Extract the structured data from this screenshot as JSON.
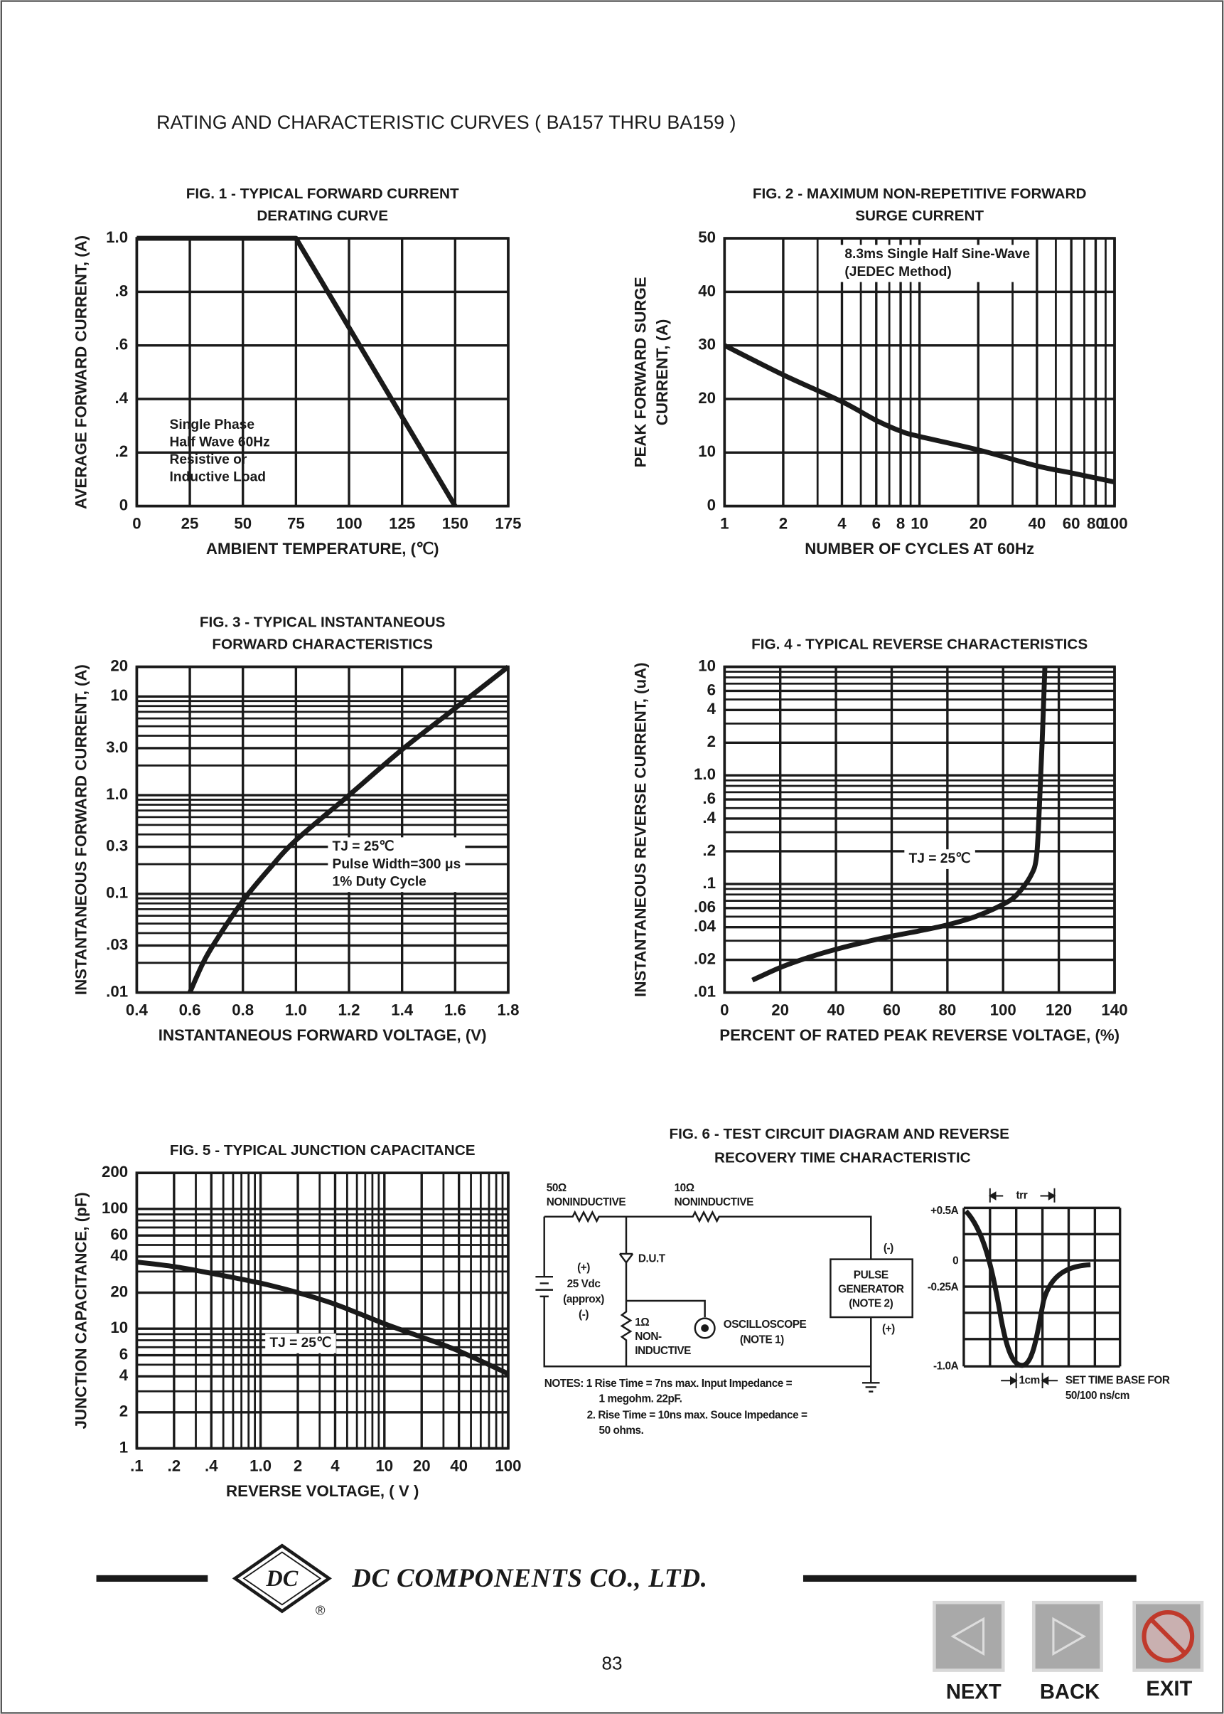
{
  "header": {
    "title": "RATING AND CHARACTERISTIC CURVES ( BA157 THRU BA159 )"
  },
  "chart_data": [
    {
      "type": "line",
      "title": [
        "FIG. 1 - TYPICAL FORWARD CURRENT",
        "DERATING CURVE"
      ],
      "xlabel": "AMBIENT TEMPERATURE, (℃)",
      "ylabel": [
        "AVERAGE FORWARD CURRENT, (A)"
      ],
      "xscale": "linear",
      "yscale": "linear",
      "grid": true,
      "color": "#1a1a1a",
      "xlim": [
        0,
        175
      ],
      "ylim": [
        0,
        1.0
      ],
      "xticks": [
        0,
        25,
        50,
        75,
        100,
        125,
        150,
        175
      ],
      "yticks": [
        0,
        {
          "value": 0.2,
          "label": ".2"
        },
        {
          "value": 0.4,
          "label": ".4"
        },
        {
          "value": 0.6,
          "label": ".6"
        },
        {
          "value": 0.8,
          "label": ".8"
        },
        {
          "value": 1.0,
          "label": "1.0"
        }
      ],
      "x": [
        0,
        75,
        150
      ],
      "values": [
        1.0,
        1.0,
        0
      ],
      "annotation": [
        "Single Phase",
        "Half Wave 60Hz",
        "Resistive or",
        "Inductive Load"
      ]
    },
    {
      "type": "line",
      "title": [
        "FIG. 2 - MAXIMUM NON-REPETITIVE FORWARD",
        "SURGE CURRENT"
      ],
      "xlabel": "NUMBER OF CYCLES AT 60Hz",
      "ylabel": [
        "PEAK FORWARD SURGE",
        "CURRENT, (A)"
      ],
      "xscale": "log",
      "yscale": "linear",
      "grid": true,
      "color": "#1a1a1a",
      "xlim": [
        1,
        100
      ],
      "ylim": [
        0,
        50
      ],
      "xticks": [
        1,
        2,
        4,
        6,
        8,
        10,
        20,
        40,
        60,
        80,
        100
      ],
      "minor_xticks": [
        3,
        5,
        7,
        9,
        30,
        50,
        70,
        90
      ],
      "yticks": [
        0,
        10,
        20,
        30,
        40,
        50
      ],
      "x": [
        1,
        2,
        4,
        6,
        8,
        10,
        20,
        40,
        60,
        100
      ],
      "values": [
        30,
        24.5,
        19.5,
        16,
        14,
        13,
        10.5,
        7.5,
        6.2,
        4.5
      ],
      "annotation": [
        "8.3ms Single Half Sine-Wave",
        "(JEDEC Method)"
      ]
    },
    {
      "type": "line",
      "title": [
        "FIG. 3 - TYPICAL INSTANTANEOUS",
        "FORWARD CHARACTERISTICS"
      ],
      "xlabel": "INSTANTANEOUS FORWARD VOLTAGE, (V)",
      "ylabel": [
        "INSTANTANEOUS FORWARD CURRENT, (A)"
      ],
      "xscale": "linear",
      "yscale": "log",
      "grid": true,
      "color": "#1a1a1a",
      "xlim": [
        0.4,
        1.8
      ],
      "ylim": [
        0.01,
        20
      ],
      "xticks": [
        0.4,
        0.6,
        0.8,
        {
          "value": 1.0,
          "label": "1.0"
        },
        1.2,
        1.4,
        1.6,
        1.8
      ],
      "yticks": [
        {
          "value": 0.01,
          "label": ".01"
        },
        {
          "value": 0.03,
          "label": ".03"
        },
        0.1,
        0.3,
        {
          "value": 1.0,
          "label": "1.0"
        },
        {
          "value": 3.0,
          "label": "3.0"
        },
        10,
        20
      ],
      "minor_yticks": [
        0.02,
        0.04,
        0.05,
        0.06,
        0.07,
        0.08,
        0.09,
        0.2,
        0.4,
        0.5,
        0.6,
        0.7,
        0.8,
        0.9,
        2,
        4,
        5,
        6,
        7,
        8,
        9
      ],
      "x": [
        0.6,
        0.65,
        0.7,
        0.8,
        0.9,
        1.0,
        1.2,
        1.4,
        1.6,
        1.8
      ],
      "values": [
        0.01,
        0.02,
        0.034,
        0.085,
        0.18,
        0.35,
        1.0,
        2.9,
        7.6,
        20
      ],
      "annotation": [
        "TJ = 25℃",
        "Pulse Width=300 μs",
        "1% Duty Cycle"
      ]
    },
    {
      "type": "line",
      "title": [
        "FIG. 4 - TYPICAL REVERSE CHARACTERISTICS"
      ],
      "xlabel": "PERCENT OF RATED PEAK REVERSE VOLTAGE, (%)",
      "ylabel": [
        "INSTANTANEOUS REVERSE CURRENT, (uA)"
      ],
      "xscale": "linear",
      "yscale": "log",
      "grid": true,
      "color": "#1a1a1a",
      "xlim": [
        0,
        140
      ],
      "ylim": [
        0.01,
        10
      ],
      "xticks": [
        0,
        20,
        40,
        60,
        80,
        100,
        120,
        140
      ],
      "yticks": [
        {
          "value": 0.01,
          "label": ".01"
        },
        {
          "value": 0.02,
          "label": ".02"
        },
        {
          "value": 0.04,
          "label": ".04"
        },
        {
          "value": 0.06,
          "label": ".06"
        },
        {
          "value": 0.1,
          "label": ".1"
        },
        {
          "value": 0.2,
          "label": ".2"
        },
        {
          "value": 0.4,
          "label": ".4"
        },
        {
          "value": 0.6,
          "label": ".6"
        },
        {
          "value": 1.0,
          "label": "1.0"
        },
        2,
        4,
        6,
        10
      ],
      "minor_yticks": [
        0.03,
        0.05,
        0.07,
        0.08,
        0.09,
        0.3,
        0.5,
        0.7,
        0.8,
        0.9,
        3,
        5,
        7,
        8,
        9
      ],
      "x": [
        10,
        20,
        30,
        40,
        50,
        60,
        70,
        80,
        90,
        100,
        105,
        110,
        112,
        113,
        114,
        115
      ],
      "values": [
        0.013,
        0.017,
        0.021,
        0.025,
        0.029,
        0.033,
        0.037,
        0.042,
        0.05,
        0.065,
        0.08,
        0.12,
        0.18,
        0.5,
        2,
        10
      ],
      "annotation": [
        "TJ = 25℃"
      ]
    },
    {
      "type": "line",
      "title": [
        "FIG. 5 - TYPICAL JUNCTION CAPACITANCE"
      ],
      "xlabel": "REVERSE VOLTAGE, ( V )",
      "ylabel": [
        "JUNCTION CAPACITANCE, (pF)"
      ],
      "xscale": "log",
      "yscale": "log",
      "grid": true,
      "color": "#1a1a1a",
      "xlim": [
        0.1,
        100
      ],
      "ylim": [
        1,
        200
      ],
      "xticks": [
        {
          "value": 0.1,
          "label": ".1"
        },
        {
          "value": 0.2,
          "label": ".2"
        },
        {
          "value": 0.4,
          "label": ".4"
        },
        {
          "value": 1.0,
          "label": "1.0"
        },
        2,
        4,
        10,
        20,
        40,
        100
      ],
      "minor_xticks": [
        0.3,
        0.5,
        0.6,
        0.7,
        0.8,
        0.9,
        3,
        5,
        6,
        7,
        8,
        9,
        30,
        50,
        60,
        70,
        80,
        90
      ],
      "yticks": [
        1,
        2,
        4,
        6,
        10,
        20,
        40,
        60,
        100,
        200
      ],
      "minor_yticks": [
        3,
        5,
        7,
        8,
        9,
        30,
        50,
        70,
        80,
        90
      ],
      "x": [
        0.1,
        0.2,
        0.4,
        1,
        2,
        4,
        10,
        20,
        40,
        100
      ],
      "values": [
        36,
        33,
        29,
        24,
        20,
        16,
        11,
        8.5,
        6.5,
        4.2
      ],
      "annotation": [
        "TJ = 25℃"
      ]
    }
  ],
  "figure6": {
    "title": [
      "FIG. 6 - TEST CIRCUIT DIAGRAM  AND REVERSE",
      "RECOVERY TIME CHARACTERISTIC"
    ],
    "circuit_labels": [
      "50Ω",
      "NONINDUCTIVE",
      "10Ω",
      "NONINDUCTIVE",
      "D.U.T",
      "(+)",
      "25 Vdc",
      "(approx)",
      "(-)",
      "1Ω",
      "NON-",
      "INDUCTIVE",
      "OSCILLOSCOPE",
      "(NOTE 1)",
      "PULSE",
      "GENERATOR",
      "(NOTE 2)",
      "(-)",
      "(+)"
    ],
    "notes": [
      "NOTES: 1  Rise Time = 7ns max. Input Impedance =",
      "1 megohm. 22pF.",
      "2. Rise Time = 10ns max. Souce Impedance =",
      "50 ohms."
    ],
    "waveform_labels": [
      "trr",
      "+0.5A",
      "0",
      "-0.25A",
      "-1.0A",
      "1cm",
      "SET TIME BASE FOR",
      "50/100 ns/cm"
    ]
  },
  "footer": {
    "logo": "DC",
    "registered": "®",
    "company": "DC COMPONENTS CO., LTD.",
    "page": "83"
  },
  "navigation": {
    "buttons": [
      "NEXT",
      "BACK",
      "EXIT"
    ]
  }
}
